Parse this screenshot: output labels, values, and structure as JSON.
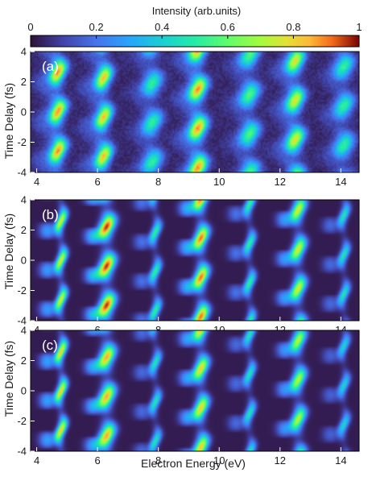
{
  "chart_data": {
    "type": "heatmap",
    "colorbar": {
      "label": "Intensity (arb.units)",
      "range": [
        0,
        1
      ],
      "ticks": [
        "0",
        "0.2",
        "0.4",
        "0.6",
        "0.8",
        "1"
      ],
      "colormap": "jet",
      "placement": "top"
    },
    "x_axis": {
      "label": "Electron Energy (eV)",
      "range": [
        3.8,
        14.6
      ],
      "ticks": [
        "4",
        "6",
        "8",
        "10",
        "12",
        "14"
      ]
    },
    "y_axis": {
      "label": "Time Delay (fs)",
      "range": [
        -4,
        4
      ],
      "ticks": [
        "4",
        "2",
        "0",
        "-2",
        "-4"
      ]
    },
    "panels": [
      {
        "id": "(a)",
        "peaks": [
          {
            "energy": 4.7,
            "width": 0.16,
            "amplitude": 0.8,
            "modulation_period_fs": 2.6
          },
          {
            "energy": 6.2,
            "width": 0.16,
            "amplitude": 0.75,
            "modulation_period_fs": 2.6
          },
          {
            "energy": 7.8,
            "width": 0.2,
            "amplitude": 0.45,
            "modulation_period_fs": 2.6
          },
          {
            "energy": 9.3,
            "width": 0.18,
            "amplitude": 0.8,
            "modulation_period_fs": 2.6
          },
          {
            "energy": 11.0,
            "width": 0.2,
            "amplitude": 0.5,
            "modulation_period_fs": 2.6
          },
          {
            "energy": 12.5,
            "width": 0.18,
            "amplitude": 0.7,
            "modulation_period_fs": 2.6
          },
          {
            "energy": 14.1,
            "width": 0.2,
            "amplitude": 0.45,
            "modulation_period_fs": 2.6
          }
        ]
      },
      {
        "id": "(b)",
        "peaks": [
          {
            "energy": 4.8,
            "width": 0.1,
            "amplitude": 0.75,
            "modulation_period_fs": 2.6
          },
          {
            "energy": 6.3,
            "width": 0.16,
            "amplitude": 0.95,
            "modulation_period_fs": 2.6
          },
          {
            "energy": 7.9,
            "width": 0.1,
            "amplitude": 0.5,
            "modulation_period_fs": 2.6
          },
          {
            "energy": 9.4,
            "width": 0.14,
            "amplitude": 0.9,
            "modulation_period_fs": 2.6
          },
          {
            "energy": 11.0,
            "width": 0.1,
            "amplitude": 0.5,
            "modulation_period_fs": 2.6
          },
          {
            "energy": 12.6,
            "width": 0.14,
            "amplitude": 0.75,
            "modulation_period_fs": 2.6
          },
          {
            "energy": 14.1,
            "width": 0.1,
            "amplitude": 0.45,
            "modulation_period_fs": 2.6
          }
        ]
      },
      {
        "id": "(c)",
        "peaks": [
          {
            "energy": 4.8,
            "width": 0.1,
            "amplitude": 0.8,
            "modulation_period_fs": 2.6
          },
          {
            "energy": 6.3,
            "width": 0.16,
            "amplitude": 0.85,
            "modulation_period_fs": 2.6
          },
          {
            "energy": 7.9,
            "width": 0.1,
            "amplitude": 0.45,
            "modulation_period_fs": 2.6
          },
          {
            "energy": 9.4,
            "width": 0.14,
            "amplitude": 0.8,
            "modulation_period_fs": 2.6
          },
          {
            "energy": 11.0,
            "width": 0.1,
            "amplitude": 0.45,
            "modulation_period_fs": 2.6
          },
          {
            "energy": 12.6,
            "width": 0.14,
            "amplitude": 0.7,
            "modulation_period_fs": 2.6
          },
          {
            "energy": 14.1,
            "width": 0.1,
            "amplitude": 0.4,
            "modulation_period_fs": 2.6
          }
        ]
      }
    ],
    "background_color": "#30123b"
  }
}
